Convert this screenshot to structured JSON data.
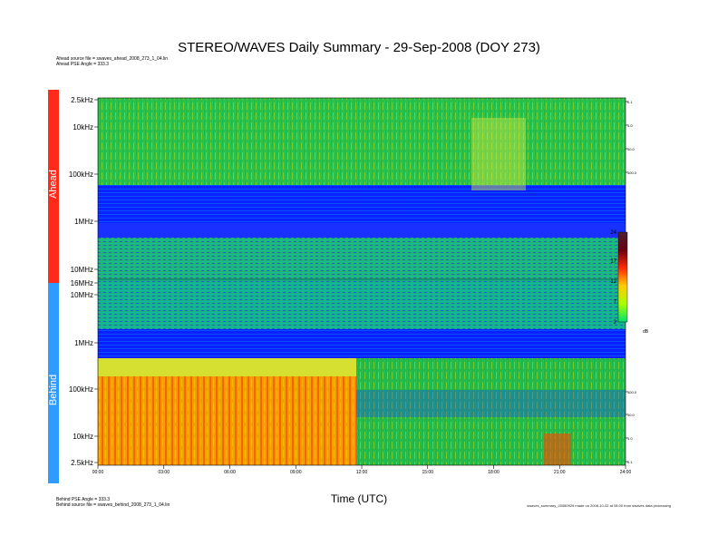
{
  "title": "STEREO/WAVES Daily Summary - 29-Sep-2008 (DOY 273)",
  "header_meta": {
    "ahead_source": "Ahead source file = swaves_ahead_2008_273_1_04.lin",
    "ahead_pse": "Ahead PSE Angle = 333.3"
  },
  "footer_meta": {
    "behind_pse": "Behind PSE Angle = 333.3",
    "behind_source": "Behind source file = swaves_behind_2008_273_1_04.lin"
  },
  "footnote": "swaves_summary_20080929 made on 2008-10-02 at 08:00 from swaves data processing",
  "colors": {
    "ahead_bar": "#ff2a1a",
    "behind_bar": "#2f9bff",
    "plot_bg": "#0018ff"
  },
  "chart_data": {
    "type": "heatmap",
    "xlabel": "Time (UTC)",
    "x_ticks": [
      "00:00",
      "03:00",
      "06:00",
      "09:00",
      "12:00",
      "15:00",
      "18:00",
      "21:00",
      "24:00"
    ],
    "panels": [
      {
        "name": "Ahead",
        "y_ticks": [
          "2.5kHz",
          "10kHz",
          "100kHz",
          "1MHz",
          "10MHz",
          "16MHz"
        ],
        "right_ticks": [
          "0.1",
          "1.0",
          "10.0",
          "100.0"
        ]
      },
      {
        "name": "Behind",
        "y_ticks": [
          "10MHz",
          "1MHz",
          "100kHz",
          "10kHz",
          "2.5kHz"
        ],
        "right_ticks": [
          "100.0",
          "10.0",
          "1.0",
          "0.1"
        ]
      }
    ],
    "colorbar": {
      "ticks": [
        "24",
        "17",
        "12",
        "7",
        "2"
      ],
      "unit": "dB",
      "range": [
        2,
        24
      ]
    }
  }
}
